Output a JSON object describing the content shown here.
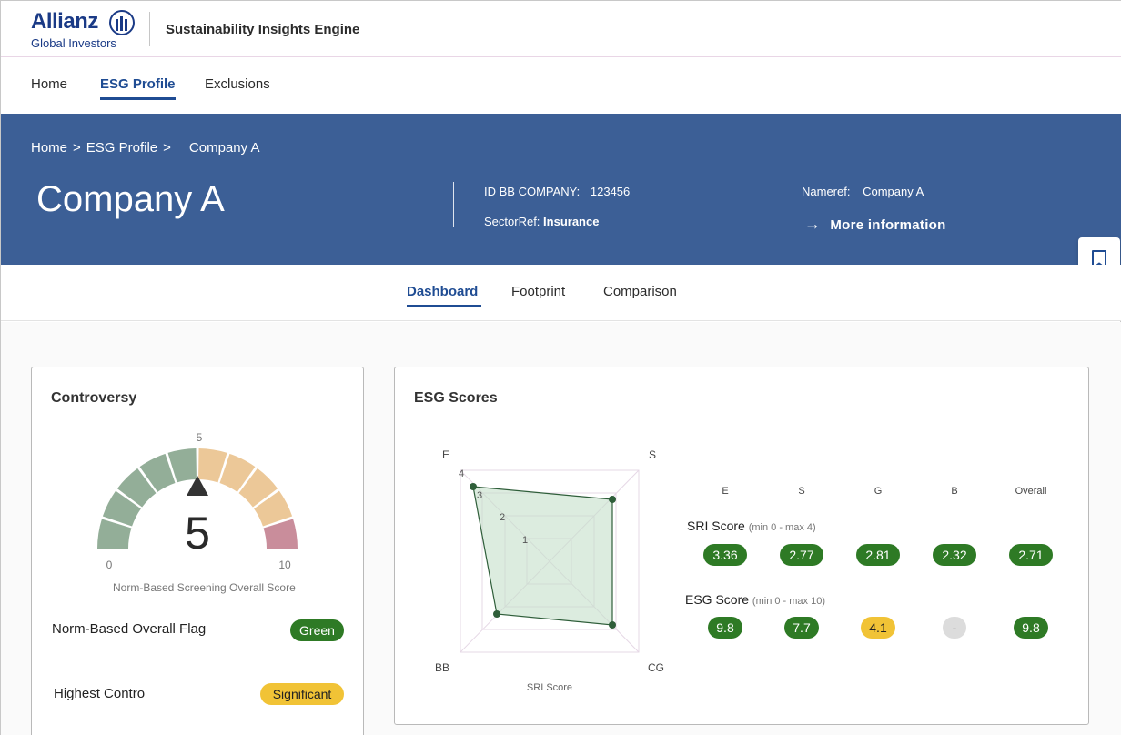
{
  "header": {
    "logo_word": "Allianz",
    "logo_sub": "Global Investors",
    "app_title": "Sustainability Insights Engine"
  },
  "main_nav": {
    "items": [
      {
        "label": "Home"
      },
      {
        "label": "ESG Profile",
        "active": true
      },
      {
        "label": "Exclusions"
      }
    ]
  },
  "breadcrumb": {
    "items": [
      "Home",
      "ESG Profile",
      "Company A"
    ],
    "separator": ">"
  },
  "company": {
    "title": "Company A",
    "id_label": "ID BB COMPANY:",
    "id_value": "123456",
    "sector_label": "SectorRef:",
    "sector_value": "Insurance",
    "nameref_label": "Nameref:",
    "nameref_value": "Company A",
    "more_info": "More information"
  },
  "sub_tabs": {
    "items": [
      {
        "label": "Dashboard",
        "active": true
      },
      {
        "label": "Footprint"
      },
      {
        "label": "Comparison"
      }
    ]
  },
  "controversy": {
    "title": "Controversy",
    "gauge_value": "5",
    "gauge_min": "0",
    "gauge_max": "10",
    "gauge_mid": "5",
    "gauge_caption": "Norm-Based Screening Overall Score",
    "flag_label": "Norm-Based Overall Flag",
    "flag_value": "Green",
    "contro_label": "Highest Contro",
    "contro_value": "Significant"
  },
  "esg_scores": {
    "title": "ESG Scores",
    "columns": [
      "E",
      "S",
      "G",
      "B",
      "Overall"
    ],
    "sri": {
      "label": "SRI Score",
      "range": "(min 0 - max 4)",
      "values": [
        "3.36",
        "2.77",
        "2.81",
        "2.32",
        "2.71"
      ],
      "statuses": [
        "green",
        "green",
        "green",
        "green",
        "green"
      ]
    },
    "esg": {
      "label": "ESG Score",
      "range": "(min 0 - max 10)",
      "values": [
        "9.8",
        "7.7",
        "4.1",
        "-",
        "9.8"
      ],
      "statuses": [
        "green",
        "green",
        "yellow",
        "grey",
        "green"
      ]
    },
    "radar": {
      "axis_labels": {
        "e": "E",
        "s": "S",
        "cg": "CG",
        "bb": "BB"
      },
      "ring_labels": [
        "1",
        "2",
        "3",
        "4"
      ],
      "caption": "SRI Score"
    }
  },
  "colors": {
    "brand": "#1a3a86",
    "hero": "#3c5f96",
    "active_tab": "#1f4c93",
    "good": "#2e7a25",
    "warn": "#f1c336",
    "neutral": "#dcdcdc"
  }
}
